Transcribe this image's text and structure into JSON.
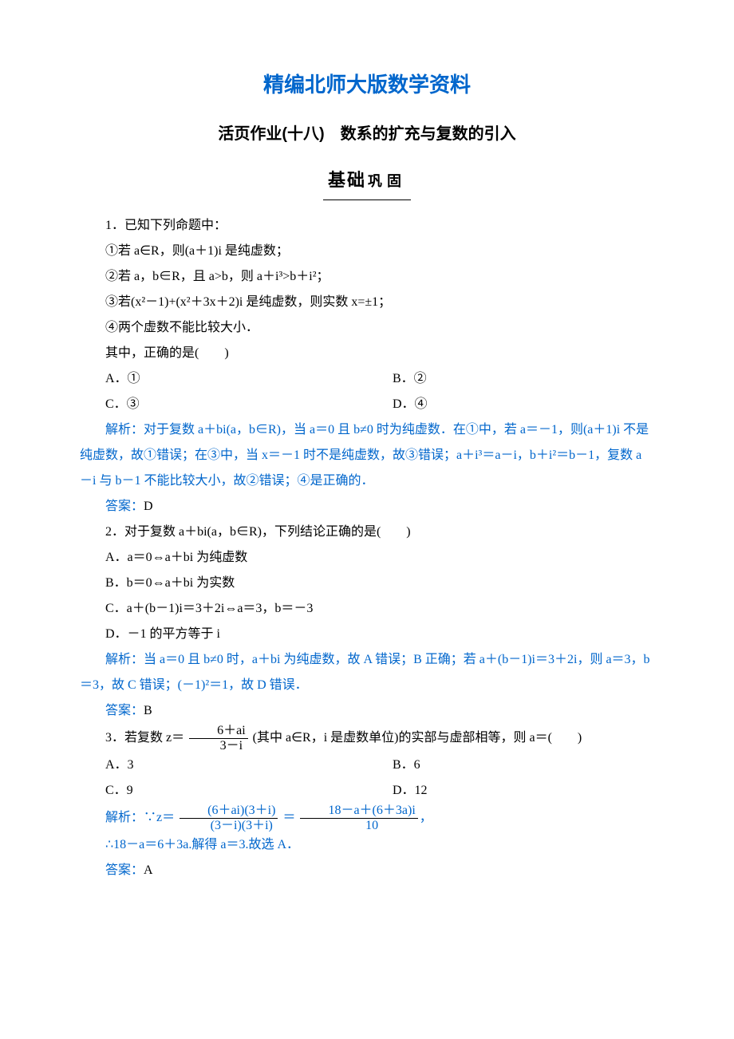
{
  "header": {
    "main_title": "精编北师大版数学资料",
    "sub_title": "活页作业(十八)　数系的扩充与复数的引入",
    "section_kai": "基础",
    "section_hei": "巩固"
  },
  "colors": {
    "accent": "#0066cc",
    "text": "#000000",
    "background": "#ffffff"
  },
  "q1": {
    "stem": "1．已知下列命题中：",
    "items": [
      "①若 a∈R，则(a＋1)i 是纯虚数；",
      "②若 a，b∈R，且 a>b，则 a＋i³>b＋i²；",
      "③若(x²－1)+(x²＋3x＋2)i 是纯虚数，则实数 x=±1；",
      "④两个虚数不能比较大小．"
    ],
    "ask": "其中，正确的是(　　)",
    "opts": {
      "A": "A．①",
      "B": "B．②",
      "C": "C．③",
      "D": "D．④"
    },
    "analysis_label": "解析：",
    "analysis_body": "对于复数 a＋bi(a，b∈R)，当 a＝0 且 b≠0 时为纯虚数．在①中，若 a＝－1，则(a＋1)i 不是纯虚数，故①错误；在③中，当 x＝－1 时不是纯虚数，故③错误；a＋i³＝a－i，b＋i²＝b－1，复数 a－i 与 b－1 不能比较大小，故②错误；④是正确的．",
    "answer_label": "答案：",
    "answer_value": "D"
  },
  "q2": {
    "stem": "2．对于复数 a＋bi(a，b∈R)，下列结论正确的是(　　)",
    "opts": {
      "A": "A．a＝0⇔a＋bi 为纯虚数",
      "B": "B．b＝0⇔a＋bi 为实数",
      "C": "C．a＋(b－1)i＝3＋2i⇔a＝3，b＝－3",
      "D": "D．－1 的平方等于 i"
    },
    "analysis_label": "解析：",
    "analysis_body": "当 a＝0 且 b≠0 时，a＋bi 为纯虚数，故 A 错误；B 正确；若 a＋(b－1)i＝3＋2i，则 a＝3，b＝3，故 C 错误；(－1)²＝1，故 D 错误．",
    "answer_label": "答案：",
    "answer_value": "B"
  },
  "q3": {
    "stem_prefix": "3．若复数 z＝",
    "frac1_num": "6＋ai",
    "frac1_den": "3－i",
    "stem_suffix": "(其中 a∈R，i 是虚数单位)的实部与虚部相等，则 a＝(　　)",
    "opts": {
      "A": "A．3",
      "B": "B．6",
      "C": "C．9",
      "D": "D．12"
    },
    "analysis_label": "解析：",
    "analysis_prefix": "∵z＝",
    "frac2_num": "(6＋ai)(3＋i)",
    "frac2_den": "(3－i)(3＋i)",
    "eq": "＝",
    "frac3_num": "18－a＋(6＋3a)i",
    "frac3_den": "10",
    "analysis_suffix": "，",
    "analysis_line2": "∴18－a＝6＋3a.解得 a＝3.故选 A．",
    "answer_label": "答案：",
    "answer_value": "A"
  }
}
